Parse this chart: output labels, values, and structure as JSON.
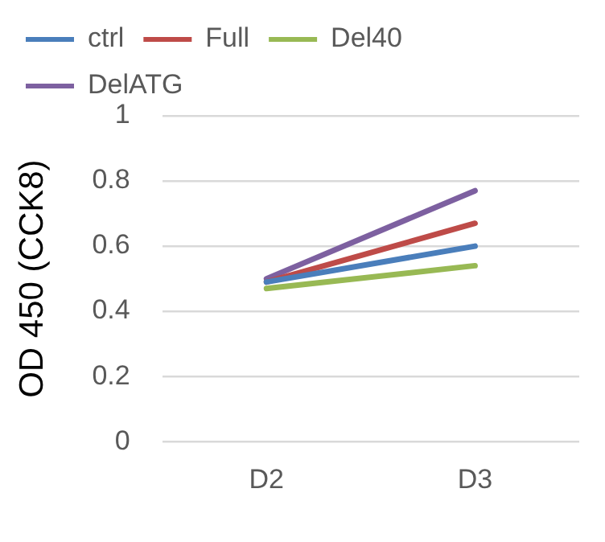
{
  "chart_data": {
    "type": "line",
    "ylabel": "OD 450 (CCK8)",
    "categories": [
      "D2",
      "D3"
    ],
    "series": [
      {
        "name": "ctrl",
        "color": "#4a7ebb",
        "values": [
          0.49,
          0.6
        ]
      },
      {
        "name": "Full",
        "color": "#be4b48",
        "values": [
          0.49,
          0.67
        ]
      },
      {
        "name": "Del40",
        "color": "#98b954",
        "values": [
          0.47,
          0.54
        ]
      },
      {
        "name": "DelATG",
        "color": "#7d60a0",
        "values": [
          0.5,
          0.77
        ]
      }
    ],
    "ylim": [
      0,
      1
    ],
    "yticks": [
      0,
      0.2,
      0.4,
      0.6,
      0.8,
      1
    ],
    "grid": "y",
    "legend": "top",
    "marker": "none"
  }
}
